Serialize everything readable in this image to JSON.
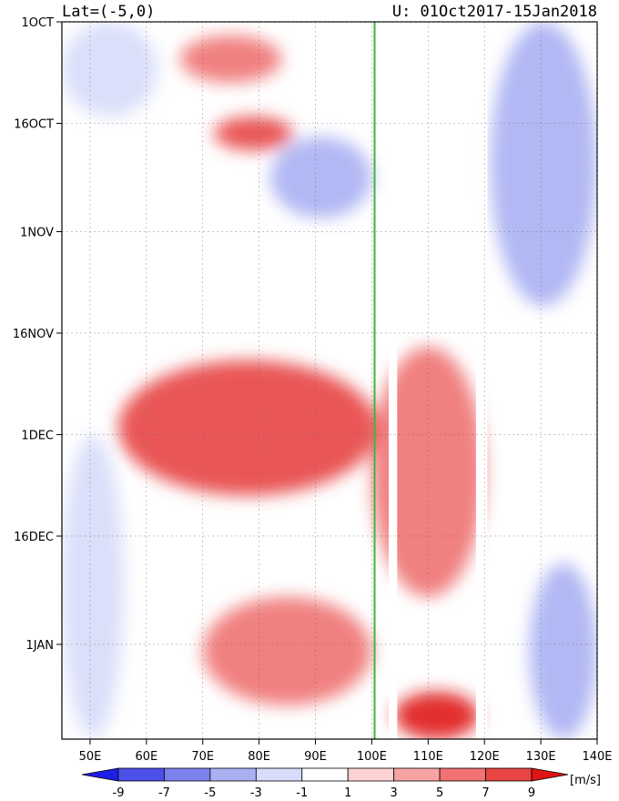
{
  "chart_data": {
    "type": "heatmap",
    "title_left": "Lat=(-5,0)",
    "title_right": "U: 01Oct2017-15Jan2018",
    "x_axis": {
      "ticks": [
        50,
        60,
        70,
        80,
        90,
        100,
        110,
        120,
        130,
        140
      ],
      "tick_labels": [
        "50E",
        "60E",
        "70E",
        "80E",
        "90E",
        "100E",
        "110E",
        "120E",
        "130E",
        "140E"
      ],
      "range": [
        45,
        140
      ]
    },
    "y_axis": {
      "ticks": [
        "2017-10-01",
        "2017-10-16",
        "2017-11-01",
        "2017-11-16",
        "2017-12-01",
        "2017-12-16",
        "2018-01-01"
      ],
      "tick_labels": [
        "1OCT",
        "16OCT",
        "1NOV",
        "16NOV",
        "1DEC",
        "16DEC",
        "1JAN"
      ],
      "range": [
        "2017-10-01",
        "2018-01-15"
      ]
    },
    "marker_line": {
      "lon": 100.5,
      "color": "#3cb43c"
    },
    "colorbar": {
      "unit": "[m/s]",
      "levels": [
        -9,
        -7,
        -5,
        -3,
        -1,
        1,
        3,
        5,
        7,
        9
      ],
      "level_labels": [
        "-9",
        "-7",
        "-5",
        "-3",
        "-1",
        "1",
        "3",
        "5",
        "7",
        "9"
      ],
      "colors": [
        "#1e1ee6",
        "#4c50e8",
        "#7c82ec",
        "#a9b0f2",
        "#d6dcfa",
        "#ffffff",
        "#fcd2d2",
        "#f7a3a3",
        "#f07272",
        "#e84444",
        "#e01414"
      ]
    },
    "missing_data_lon_bands": [
      [
        103,
        104.5
      ],
      [
        118.5,
        120.5
      ]
    ],
    "wind_features": [
      {
        "label": "strong westerly",
        "lon": [
          55,
          101
        ],
        "date": [
          "2017-11-20",
          "2017-12-10"
        ],
        "value": 8
      },
      {
        "label": "westerly",
        "lon": [
          100,
          120
        ],
        "date": [
          "2017-11-18",
          "2017-12-25"
        ],
        "value": 6
      },
      {
        "label": "westerly",
        "lon": [
          70,
          100
        ],
        "date": [
          "2017-12-25",
          "2018-01-10"
        ],
        "value": 6
      },
      {
        "label": "westerly",
        "lon": [
          66,
          84
        ],
        "date": [
          "2017-10-03",
          "2017-10-10"
        ],
        "value": 5.5
      },
      {
        "label": "westerly",
        "lon": [
          72,
          86
        ],
        "date": [
          "2017-10-15",
          "2017-10-20"
        ],
        "value": 7
      },
      {
        "label": "westerly",
        "lon": [
          104,
          119
        ],
        "date": [
          "2018-01-08",
          "2018-01-15"
        ],
        "value": 9
      },
      {
        "label": "easterly",
        "lon": [
          45,
          62
        ],
        "date": [
          "2017-10-01",
          "2017-10-15"
        ],
        "value": -3
      },
      {
        "label": "easterly",
        "lon": [
          45,
          56
        ],
        "date": [
          "2017-12-01",
          "2018-01-15"
        ],
        "value": -2
      },
      {
        "label": "easterly",
        "lon": [
          82,
          100
        ],
        "date": [
          "2017-10-18",
          "2017-10-30"
        ],
        "value": -4
      },
      {
        "label": "easterly",
        "lon": [
          121,
          140
        ],
        "date": [
          "2017-10-01",
          "2017-11-12"
        ],
        "value": -4
      },
      {
        "label": "easterly",
        "lon": [
          128,
          140
        ],
        "date": [
          "2017-12-20",
          "2018-01-15"
        ],
        "value": -5
      }
    ]
  }
}
